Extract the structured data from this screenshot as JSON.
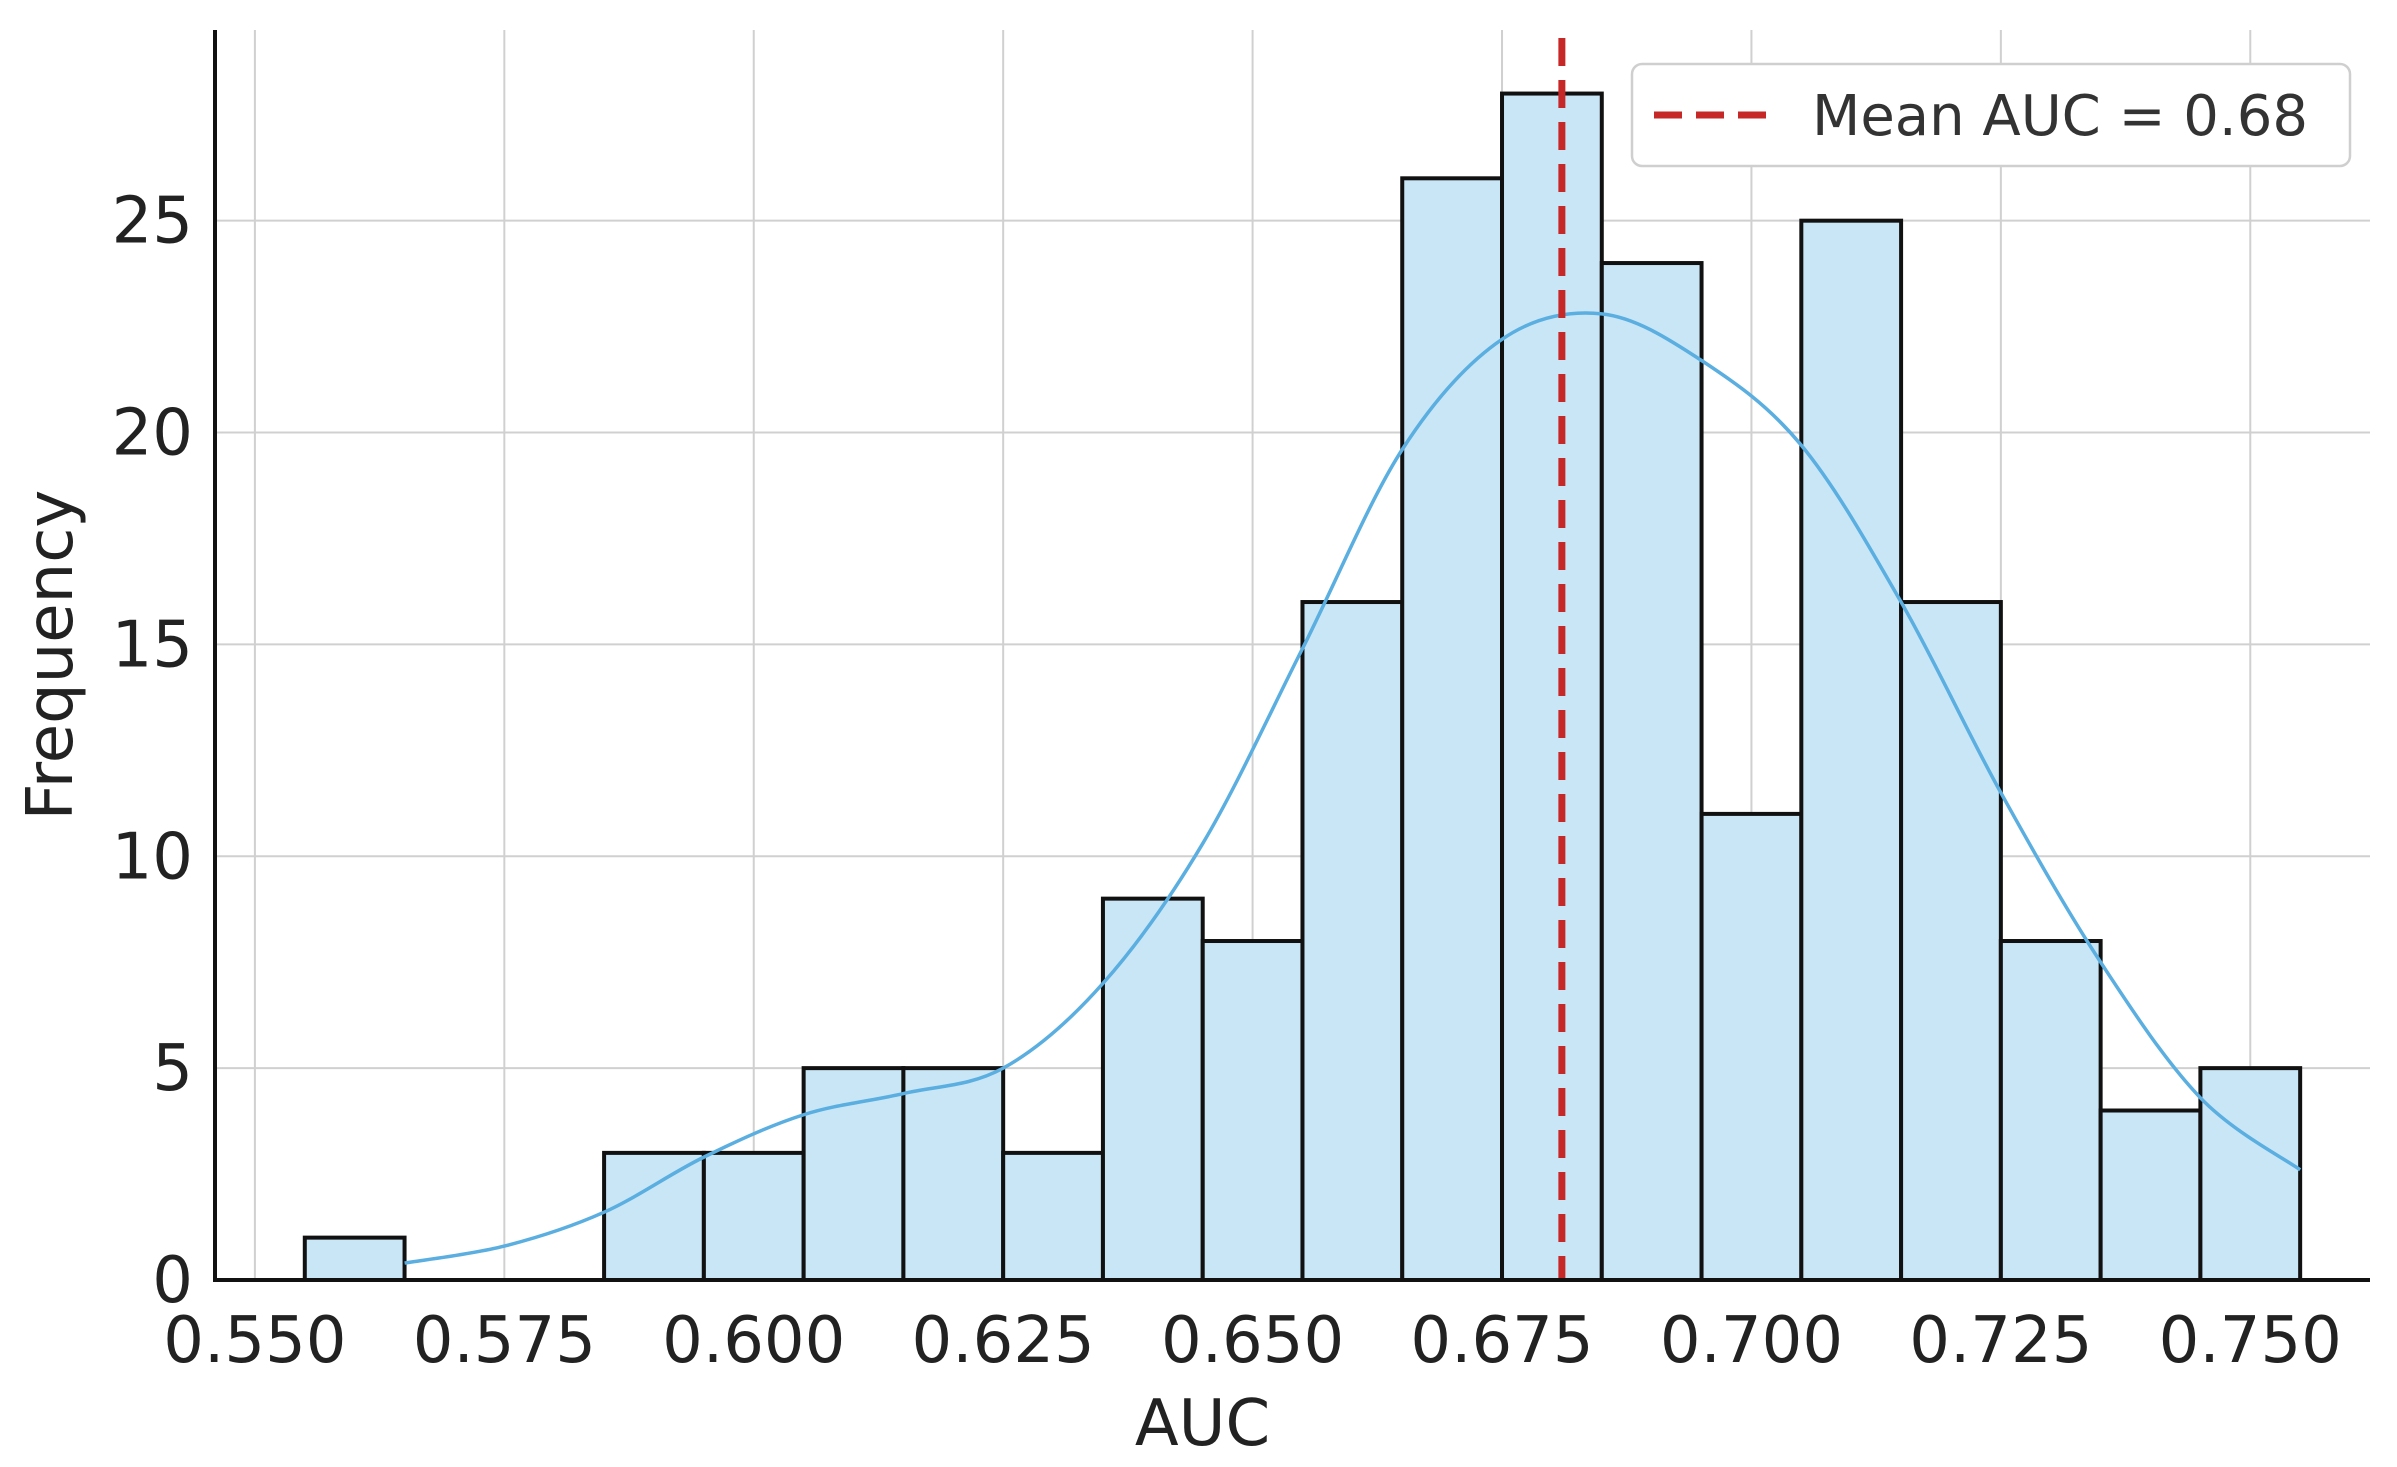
{
  "chart_data": {
    "type": "bar",
    "subtype": "histogram_with_kde",
    "title": "",
    "xlabel": "AUC",
    "ylabel": "Frequency",
    "xlim": [
      0.546,
      0.762
    ],
    "ylim": [
      0,
      29.5
    ],
    "grid": true,
    "x_ticks": [
      {
        "value": 0.55,
        "label": "0.550"
      },
      {
        "value": 0.575,
        "label": "0.575"
      },
      {
        "value": 0.6,
        "label": "0.600"
      },
      {
        "value": 0.625,
        "label": "0.625"
      },
      {
        "value": 0.65,
        "label": "0.650"
      },
      {
        "value": 0.675,
        "label": "0.675"
      },
      {
        "value": 0.7,
        "label": "0.700"
      },
      {
        "value": 0.725,
        "label": "0.725"
      },
      {
        "value": 0.75,
        "label": "0.750"
      }
    ],
    "y_ticks": [
      {
        "value": 0,
        "label": "0"
      },
      {
        "value": 5,
        "label": "5"
      },
      {
        "value": 10,
        "label": "10"
      },
      {
        "value": 15,
        "label": "15"
      },
      {
        "value": 20,
        "label": "20"
      },
      {
        "value": 25,
        "label": "25"
      }
    ],
    "bins": [
      {
        "start": 0.555,
        "end": 0.565,
        "count": 1
      },
      {
        "start": 0.565,
        "end": 0.575,
        "count": 0
      },
      {
        "start": 0.575,
        "end": 0.585,
        "count": 0
      },
      {
        "start": 0.585,
        "end": 0.595,
        "count": 3
      },
      {
        "start": 0.595,
        "end": 0.605,
        "count": 3
      },
      {
        "start": 0.605,
        "end": 0.615,
        "count": 5
      },
      {
        "start": 0.615,
        "end": 0.625,
        "count": 5
      },
      {
        "start": 0.625,
        "end": 0.635,
        "count": 3
      },
      {
        "start": 0.635,
        "end": 0.645,
        "count": 9
      },
      {
        "start": 0.645,
        "end": 0.655,
        "count": 8
      },
      {
        "start": 0.655,
        "end": 0.665,
        "count": 16
      },
      {
        "start": 0.665,
        "end": 0.675,
        "count": 26
      },
      {
        "start": 0.675,
        "end": 0.685,
        "count": 28
      },
      {
        "start": 0.685,
        "end": 0.695,
        "count": 24
      },
      {
        "start": 0.695,
        "end": 0.705,
        "count": 11
      },
      {
        "start": 0.705,
        "end": 0.715,
        "count": 25
      },
      {
        "start": 0.715,
        "end": 0.725,
        "count": 16
      },
      {
        "start": 0.725,
        "end": 0.735,
        "count": 8
      },
      {
        "start": 0.735,
        "end": 0.745,
        "count": 4
      },
      {
        "start": 0.745,
        "end": 0.755,
        "count": 5
      }
    ],
    "kde": {
      "x": [
        0.565,
        0.575,
        0.585,
        0.595,
        0.605,
        0.615,
        0.625,
        0.635,
        0.645,
        0.655,
        0.665,
        0.675,
        0.685,
        0.695,
        0.705,
        0.715,
        0.725,
        0.735,
        0.745,
        0.755
      ],
      "y": [
        0.4,
        0.8,
        1.6,
        2.9,
        3.9,
        4.4,
        5.0,
        7.0,
        10.3,
        14.9,
        19.6,
        22.2,
        22.8,
        21.7,
        19.7,
        16.0,
        11.5,
        7.5,
        4.3,
        2.6
      ]
    },
    "mean_line": {
      "value": 0.681,
      "label": "Mean AUC = 0.68",
      "color": "#c62828"
    },
    "legend": {
      "position": "top-right",
      "entries": [
        "Mean AUC = 0.68"
      ]
    },
    "colors": {
      "bar_fill": "#c9e6f6",
      "bar_edge": "#111111",
      "kde": "#5aaee0",
      "mean": "#c62828"
    }
  }
}
